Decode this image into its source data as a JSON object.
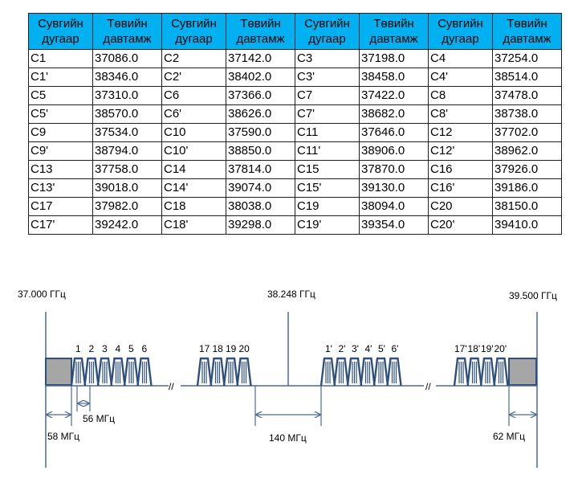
{
  "table": {
    "headers": [
      [
        "Сувгийн",
        "дугаар"
      ],
      [
        "Төвийн",
        "давтамж"
      ],
      [
        "Сувгийн",
        "дугаар"
      ],
      [
        "Төвийн",
        "давтамж"
      ],
      [
        "Сувгийн",
        "дугаар"
      ],
      [
        "Төвийн",
        "давтамж"
      ],
      [
        "Сувгийн",
        "дугаар"
      ],
      [
        "Төвийн",
        "давтамж"
      ]
    ],
    "rows": [
      [
        "C1",
        "37086.0",
        "C2",
        "37142.0",
        "C3",
        "37198.0",
        "C4",
        "37254.0"
      ],
      [
        "C1'",
        "38346.0",
        "C2'",
        "38402.0",
        "C3'",
        "38458.0",
        "C4'",
        "38514.0"
      ],
      [
        "C5",
        "37310.0",
        "C6",
        "37366.0",
        "C7",
        "37422.0",
        "C8",
        "37478.0"
      ],
      [
        "C5'",
        "38570.0",
        "C6'",
        "38626.0",
        "C7'",
        "38682.0",
        "C8'",
        "38738.0"
      ],
      [
        "C9",
        "37534.0",
        "C10",
        "37590.0",
        "C11",
        "37646.0",
        "C12",
        "37702.0"
      ],
      [
        "C9'",
        "38794.0",
        "C10'",
        "38850.0",
        "C11'",
        "38906.0",
        "C12'",
        "38962.0"
      ],
      [
        "C13",
        "37758.0",
        "C14",
        "37814.0",
        "C15",
        "37870.0",
        "C16",
        "37926.0"
      ],
      [
        "C13'",
        "39018.0",
        "C14'",
        "39074.0",
        "C15'",
        "39130.0",
        "C16'",
        "39186.0"
      ],
      [
        "C17",
        "37982.0",
        "C18",
        "38038.0",
        "C19",
        "38094.0",
        "C20",
        "38150.0"
      ],
      [
        "C17'",
        "39242.0",
        "C18'",
        "39298.0",
        "C19'",
        "39354.0",
        "C20'",
        "39410.0"
      ]
    ]
  },
  "diagram": {
    "freq_labels": {
      "left": "37.000 ГГц",
      "center": "38.248 ГГц",
      "right": "39.500 ГГц"
    },
    "group_a_labels": [
      "1",
      "2",
      "3",
      "4",
      "5",
      "6"
    ],
    "group_b_labels": [
      "17",
      "18",
      "19",
      "20"
    ],
    "group_c_labels": [
      "1'",
      "2'",
      "3'",
      "4'",
      "5'",
      "6'"
    ],
    "group_d_labels": [
      "17'",
      "18'",
      "19'",
      "20'"
    ],
    "break_mark": "//",
    "dimensions": {
      "spacing": "56 МГц",
      "lower_guard": "58 МГц",
      "center_gap": "140 МГц",
      "upper_guard": "62 МГц"
    },
    "colors": {
      "channel": "#2f4f7f",
      "guard": "#a6a6a6",
      "header_bg": "#00b0f0",
      "line": "#4a6a94"
    }
  }
}
